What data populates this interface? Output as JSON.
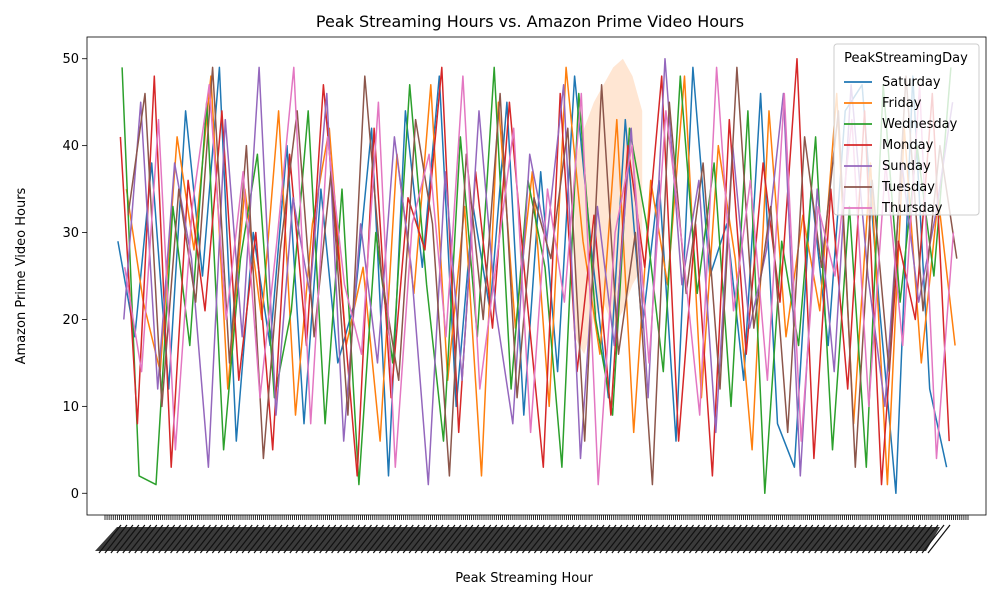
{
  "chart_data": {
    "type": "line",
    "title": "Peak Streaming Hours vs. Amazon Prime Video Hours",
    "xlabel": "Peak Streaming Hour",
    "ylabel": "Amazon Prime Video Hours",
    "ylim": [
      -2.5,
      52.5
    ],
    "yticks": [
      0,
      10,
      20,
      30,
      40,
      50
    ],
    "grid": false,
    "legend": {
      "title": "PeakStreamingDay",
      "placement": "top-right"
    },
    "series": [
      {
        "name": "Saturday",
        "color": "#1f77b4",
        "x": [
          0,
          2,
          4,
          6,
          8,
          10,
          12,
          14,
          16,
          18,
          20,
          22,
          24,
          26,
          28,
          30,
          32,
          34,
          36,
          38,
          40,
          42,
          44,
          46,
          48,
          50,
          52,
          54,
          56,
          58,
          60,
          62,
          64,
          66,
          68,
          70,
          72,
          74,
          76,
          78,
          80,
          82,
          84,
          86,
          88,
          90,
          92,
          94,
          96,
          98
        ],
        "values": [
          29,
          18,
          38,
          12,
          44,
          25,
          49,
          6,
          30,
          17,
          40,
          8,
          35,
          15,
          22,
          42,
          2,
          44,
          26,
          48,
          10,
          33,
          21,
          45,
          9,
          37,
          14,
          48,
          28,
          11,
          43,
          19,
          36,
          6,
          49,
          25,
          31,
          13,
          46,
          8,
          3,
          35,
          17,
          44,
          47,
          22,
          0,
          48,
          12,
          3
        ]
      },
      {
        "name": "Friday",
        "color": "#ff7f0e",
        "x": [
          1,
          3,
          5,
          7,
          9,
          11,
          13,
          15,
          17,
          19,
          21,
          23,
          25,
          27,
          29,
          31,
          33,
          35,
          37,
          39,
          41,
          43,
          45,
          47,
          49,
          51,
          53,
          55,
          57,
          59,
          61,
          63,
          65,
          67,
          69,
          71,
          73,
          75,
          77,
          79,
          81,
          83,
          85,
          87,
          89,
          91,
          93,
          95,
          97,
          99
        ],
        "values": [
          35,
          22,
          14,
          41,
          28,
          48,
          12,
          35,
          20,
          44,
          9,
          31,
          42,
          17,
          26,
          6,
          39,
          23,
          47,
          13,
          33,
          2,
          45,
          19,
          37,
          10,
          49,
          29,
          16,
          43,
          7,
          36,
          24,
          48,
          11,
          40,
          27,
          5,
          44,
          18,
          32,
          21,
          46,
          8,
          38,
          1,
          42,
          15,
          34,
          17
        ]
      },
      {
        "name": "Wednesday",
        "color": "#2ca02c",
        "x": [
          0.5,
          2.5,
          4.5,
          6.5,
          8.5,
          10.5,
          12.5,
          14.5,
          16.5,
          18.5,
          20.5,
          22.5,
          24.5,
          26.5,
          28.5,
          30.5,
          32.5,
          34.5,
          36.5,
          38.5,
          40.5,
          42.5,
          44.5,
          46.5,
          48.5,
          50.5,
          52.5,
          54.5,
          56.5,
          58.5,
          60.5,
          62.5,
          64.5,
          66.5,
          68.5,
          70.5,
          72.5,
          74.5,
          76.5,
          78.5,
          80.5,
          82.5,
          84.5,
          86.5,
          88.5,
          90.5,
          92.5,
          94.5,
          96.5,
          98.5
        ],
        "values": [
          49,
          2,
          1,
          33,
          17,
          45,
          5,
          27,
          39,
          11,
          21,
          44,
          8,
          35,
          1,
          30,
          15,
          47,
          24,
          6,
          41,
          18,
          49,
          12,
          36,
          26,
          3,
          46,
          20,
          9,
          42,
          31,
          14,
          48,
          23,
          38,
          10,
          44,
          0,
          29,
          17,
          41,
          5,
          33,
          3,
          47,
          22,
          40,
          25,
          49
        ]
      },
      {
        "name": "Monday",
        "color": "#d62728",
        "x": [
          0.3,
          2.3,
          4.3,
          6.3,
          8.3,
          10.3,
          12.3,
          14.3,
          16.3,
          18.3,
          20.3,
          22.3,
          24.3,
          26.3,
          28.3,
          30.3,
          32.3,
          34.3,
          36.3,
          38.3,
          40.3,
          42.3,
          44.3,
          46.3,
          48.3,
          50.3,
          52.3,
          54.3,
          56.3,
          58.3,
          60.3,
          62.3,
          64.3,
          66.3,
          68.3,
          70.3,
          72.3,
          74.3,
          76.3,
          78.3,
          80.3,
          82.3,
          84.3,
          86.3,
          88.3,
          90.3,
          92.3,
          94.3,
          96.3,
          98.3
        ],
        "values": [
          41,
          8,
          48,
          3,
          36,
          21,
          44,
          13,
          30,
          5,
          39,
          17,
          47,
          25,
          2,
          42,
          11,
          34,
          28,
          49,
          7,
          37,
          19,
          45,
          23,
          3,
          46,
          14,
          32,
          9,
          40,
          26,
          48,
          6,
          31,
          2,
          43,
          16,
          38,
          22,
          50,
          4,
          35,
          12,
          44,
          1,
          29,
          20,
          46,
          6
        ]
      },
      {
        "name": "Sunday",
        "color": "#9467bd",
        "x": [
          0.7,
          2.7,
          4.7,
          6.7,
          8.7,
          10.7,
          12.7,
          14.7,
          16.7,
          18.7,
          20.7,
          22.7,
          24.7,
          26.7,
          28.7,
          30.7,
          32.7,
          34.7,
          36.7,
          38.7,
          40.7,
          42.7,
          44.7,
          46.7,
          48.7,
          50.7,
          52.7,
          54.7,
          56.7,
          58.7,
          60.7,
          62.7,
          64.7,
          66.7,
          68.7,
          70.7,
          72.7,
          74.7,
          76.7,
          78.7,
          80.7,
          82.7,
          84.7,
          86.7,
          88.7,
          90.7,
          92.7,
          94.7,
          96.7,
          98.7
        ],
        "values": [
          20,
          45,
          12,
          38,
          27,
          3,
          43,
          18,
          49,
          9,
          34,
          23,
          46,
          6,
          31,
          15,
          41,
          26,
          1,
          37,
          13,
          44,
          21,
          8,
          39,
          29,
          47,
          4,
          33,
          17,
          42,
          11,
          50,
          24,
          36,
          7,
          40,
          19,
          28,
          46,
          2,
          35,
          14,
          47,
          25,
          10,
          38,
          22,
          32,
          45
        ]
      },
      {
        "name": "Tuesday",
        "color": "#8c564b",
        "x": [
          1.2,
          3.2,
          5.2,
          7.2,
          9.2,
          11.2,
          13.2,
          15.2,
          17.2,
          19.2,
          21.2,
          23.2,
          25.2,
          27.2,
          29.2,
          31.2,
          33.2,
          35.2,
          37.2,
          39.2,
          41.2,
          43.2,
          45.2,
          47.2,
          49.2,
          51.2,
          53.2,
          55.2,
          57.2,
          59.2,
          61.2,
          63.2,
          65.2,
          67.2,
          69.2,
          71.2,
          73.2,
          75.2,
          77.2,
          79.2,
          81.2,
          83.2,
          85.2,
          87.2,
          89.2,
          91.2,
          93.2,
          95.2,
          97.2,
          99.2
        ],
        "values": [
          32,
          46,
          10,
          35,
          22,
          49,
          15,
          40,
          4,
          28,
          44,
          18,
          37,
          9,
          48,
          25,
          13,
          43,
          31,
          2,
          39,
          20,
          46,
          11,
          34,
          27,
          42,
          6,
          47,
          16,
          30,
          1,
          45,
          23,
          38,
          12,
          49,
          19,
          33,
          7,
          41,
          26,
          44,
          3,
          36,
          14,
          48,
          21,
          40,
          27
        ]
      },
      {
        "name": "Thursday",
        "color": "#e377c2",
        "x": [
          0.8,
          2.8,
          4.8,
          6.8,
          8.8,
          10.8,
          12.8,
          14.8,
          16.8,
          18.8,
          20.8,
          22.8,
          24.8,
          26.8,
          28.8,
          30.8,
          32.8,
          34.8,
          36.8,
          38.8,
          40.8,
          42.8,
          44.8,
          46.8,
          48.8,
          50.8,
          52.8,
          54.8,
          56.8,
          58.8,
          60.8,
          62.8,
          64.8,
          66.8,
          68.8,
          70.8,
          72.8,
          74.8,
          76.8,
          78.8,
          80.8,
          82.8,
          84.8,
          86.8,
          88.8,
          90.8,
          92.8,
          94.8,
          96.8,
          98.8
        ],
        "values": [
          26,
          14,
          43,
          5,
          33,
          47,
          20,
          37,
          11,
          29,
          49,
          8,
          41,
          24,
          16,
          45,
          3,
          31,
          39,
          18,
          48,
          12,
          27,
          42,
          7,
          35,
          22,
          46,
          1,
          30,
          40,
          15,
          44,
          28,
          9,
          49,
          21,
          36,
          13,
          46,
          6,
          33,
          25,
          43,
          10,
          38,
          17,
          47,
          4,
          30
        ]
      }
    ],
    "band": {
      "color": "#ffdcc0",
      "x_range": [
        54,
        62
      ],
      "upper": [
        38,
        42,
        45,
        47,
        49,
        50,
        48,
        44
      ],
      "lower": [
        18,
        16,
        20,
        22,
        19,
        21,
        24,
        26
      ]
    }
  }
}
